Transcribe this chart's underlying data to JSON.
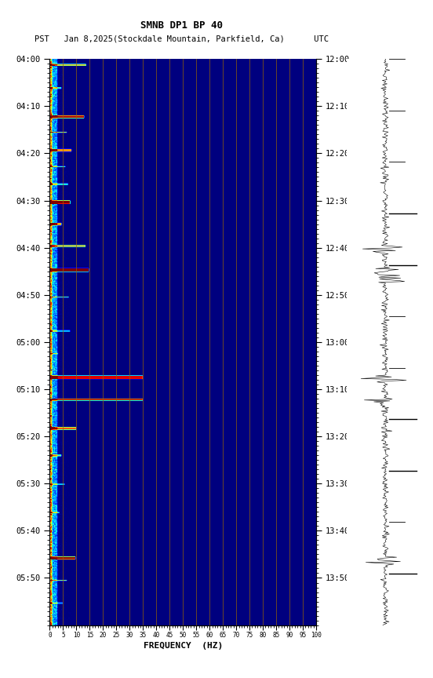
{
  "title_line1": "SMNB DP1 BP 40",
  "title_line2": "PST   Jan 8,2025(Stockdale Mountain, Parkfield, Ca)      UTC",
  "xlabel": "FREQUENCY  (HZ)",
  "freq_min": 0,
  "freq_max": 100,
  "freq_ticks": [
    0,
    5,
    10,
    15,
    20,
    25,
    30,
    35,
    40,
    45,
    50,
    55,
    60,
    65,
    70,
    75,
    80,
    85,
    90,
    95,
    100
  ],
  "freq_grid_lines": [
    5,
    10,
    15,
    20,
    25,
    30,
    35,
    40,
    45,
    50,
    55,
    60,
    65,
    70,
    75,
    80,
    85,
    90,
    95,
    100
  ],
  "left_yticks_labels": [
    "04:00",
    "04:10",
    "04:20",
    "04:30",
    "04:40",
    "04:50",
    "05:00",
    "05:10",
    "05:20",
    "05:30",
    "05:40",
    "05:50"
  ],
  "right_yticks_labels": [
    "12:00",
    "12:10",
    "12:20",
    "12:30",
    "12:40",
    "12:50",
    "13:00",
    "13:10",
    "13:20",
    "13:30",
    "13:40",
    "13:50"
  ],
  "colormap": "jet",
  "figwidth": 5.52,
  "figheight": 8.64,
  "dpi": 100,
  "grid_color": "#996600",
  "grid_alpha": 0.8,
  "grid_lw": 0.6
}
